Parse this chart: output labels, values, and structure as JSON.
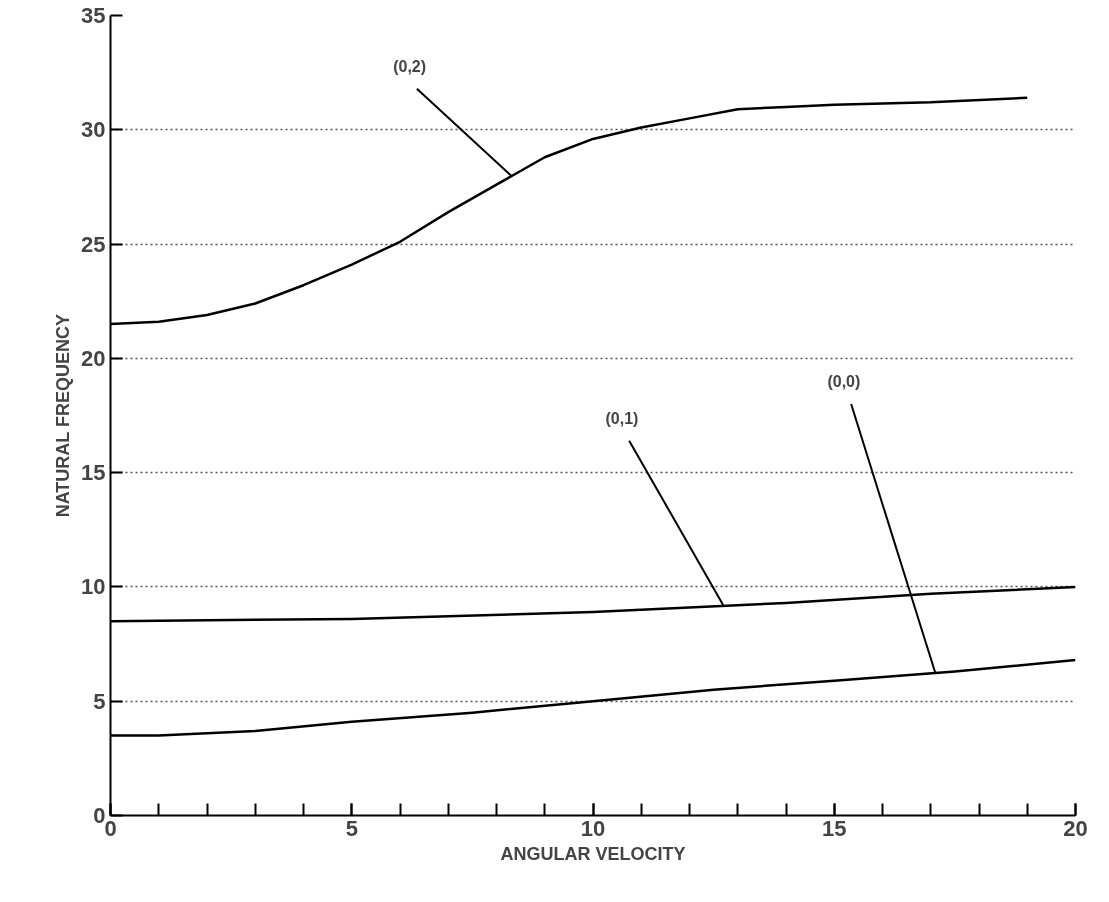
{
  "chart_data": {
    "type": "line",
    "xlabel": "ANGULAR VELOCITY",
    "ylabel": "NATURAL FREQUENCY",
    "xlim": [
      0,
      20
    ],
    "ylim": [
      0,
      35
    ],
    "xticks": [
      0,
      5,
      10,
      15,
      20
    ],
    "yticks": [
      0,
      5,
      10,
      15,
      20,
      25,
      30,
      35
    ],
    "grid": "y",
    "line_style": "solid",
    "marker": "none",
    "series": [
      {
        "color": "#000000",
        "x": [
          0,
          1,
          2,
          3,
          4,
          5,
          6,
          7,
          8,
          9,
          10,
          11,
          12,
          13,
          14,
          15,
          17,
          19
        ],
        "values": [
          21.5,
          21.6,
          21.9,
          22.4,
          23.2,
          24.1,
          25.1,
          26.4,
          27.6,
          28.8,
          29.6,
          30.1,
          30.5,
          30.9,
          31.0,
          31.1,
          31.2,
          31.4
        ]
      },
      {
        "color": "#000000",
        "x": [
          0,
          5,
          10,
          14,
          17,
          20
        ],
        "values": [
          8.5,
          8.6,
          8.9,
          9.3,
          9.7,
          10.0
        ]
      },
      {
        "color": "#000000",
        "x": [
          0,
          1,
          3,
          5,
          7.5,
          10,
          12.5,
          15,
          17.5,
          20
        ],
        "values": [
          3.5,
          3.5,
          3.7,
          4.1,
          4.5,
          5.0,
          5.5,
          5.9,
          6.3,
          6.8
        ]
      }
    ],
    "annotations": [
      {
        "text": "(0,2)",
        "x": 8.3,
        "y": 28.0
      },
      {
        "text": "(0,1)",
        "x": 12.7,
        "y": 9.2
      },
      {
        "text": "(0,0)",
        "x": 17.1,
        "y": 6.2
      }
    ]
  }
}
